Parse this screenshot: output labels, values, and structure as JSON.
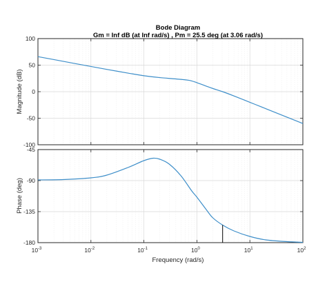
{
  "chart_data": {
    "type": "line",
    "title": "Bode Diagram",
    "subtitle": "Gm = Inf dB (at Inf rad/s) ,  Pm = 25.5 deg (at 3.06 rad/s)",
    "xlabel": "Frequency  (rad/s)",
    "xscale": "log",
    "xlim": [
      0.001,
      100
    ],
    "x_ticks": [
      {
        "base": "10",
        "exp": "-3",
        "value": 0.001
      },
      {
        "base": "10",
        "exp": "-2",
        "value": 0.01
      },
      {
        "base": "10",
        "exp": "-1",
        "value": 0.1
      },
      {
        "base": "10",
        "exp": "0",
        "value": 1
      },
      {
        "base": "10",
        "exp": "1",
        "value": 10
      },
      {
        "base": "10",
        "exp": "2",
        "value": 100
      }
    ],
    "grid": true,
    "magnitude": {
      "ylabel": "Magnitude (dB)",
      "ylim": [
        -100,
        100
      ],
      "y_ticks": [
        "100",
        "50",
        "0",
        "-50",
        "-100"
      ],
      "y_tick_values": [
        100,
        50,
        0,
        -50,
        -100
      ],
      "x": [
        0.001,
        0.002,
        0.005,
        0.01,
        0.02,
        0.05,
        0.1,
        0.2,
        0.4,
        0.7,
        1,
        1.5,
        2,
        3.06,
        5,
        10,
        20,
        50,
        100
      ],
      "values": [
        66,
        60.5,
        53,
        47.5,
        42,
        35,
        30,
        26.5,
        24,
        21.5,
        17,
        10.5,
        6,
        0,
        -8,
        -20,
        -32,
        -48,
        -60
      ]
    },
    "phase": {
      "ylabel": "Phase (deg)",
      "ylim": [
        -180,
        -45
      ],
      "y_ticks": [
        "-45",
        "-90",
        "-135",
        "-180"
      ],
      "y_tick_values": [
        -45,
        -90,
        -135,
        -180
      ],
      "x": [
        0.001,
        0.003,
        0.01,
        0.02,
        0.05,
        0.1,
        0.15,
        0.2,
        0.3,
        0.5,
        0.8,
        1,
        1.5,
        2,
        3.06,
        5,
        10,
        20,
        50,
        100
      ],
      "values": [
        -89,
        -88.5,
        -86,
        -82,
        -71,
        -61,
        -57.5,
        -59,
        -66,
        -83,
        -105,
        -114,
        -132,
        -144,
        -154.5,
        -163,
        -171,
        -176,
        -178.5,
        -179.5
      ]
    },
    "phase_margin_marker": {
      "x": 3.06,
      "from": -180,
      "to": -154.5
    }
  }
}
